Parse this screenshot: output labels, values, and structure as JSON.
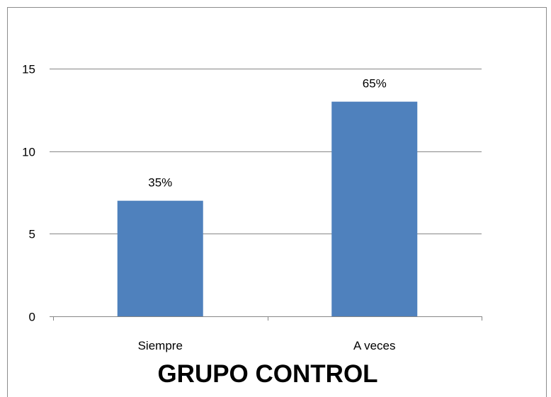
{
  "chart_data": {
    "type": "bar",
    "title": "GRUPO CONTROL",
    "categories": [
      "Siempre",
      "A veces"
    ],
    "values": [
      7,
      13
    ],
    "data_labels": [
      "35%",
      "65%"
    ],
    "ylim": [
      0,
      15
    ],
    "yticks": [
      "0",
      "5",
      "10",
      "15"
    ],
    "grid": true,
    "legend": "none",
    "bar_color": "#4F81BD"
  }
}
